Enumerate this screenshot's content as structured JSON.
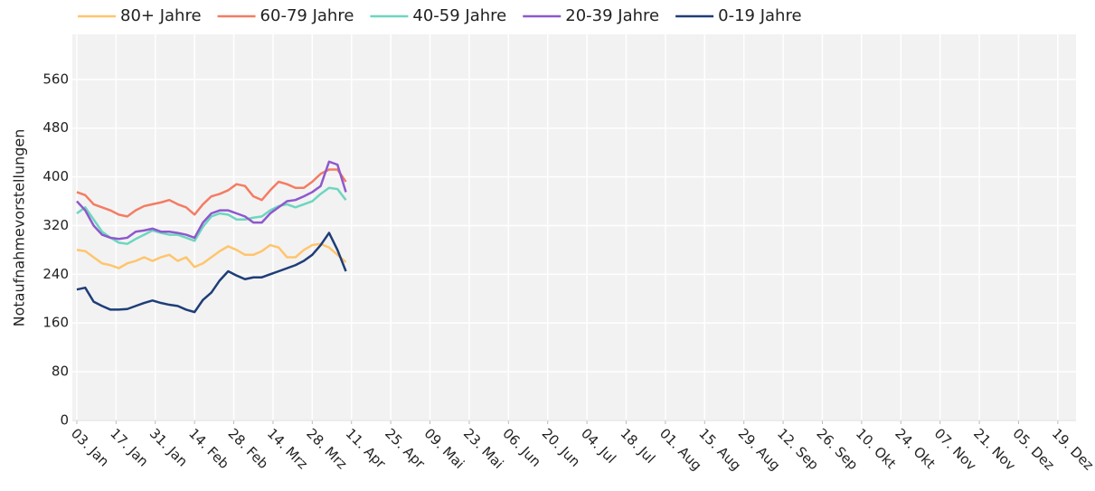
{
  "chart_data": {
    "type": "line",
    "y_label": "Notaufnahmevorstellungen",
    "grid": true,
    "legend": "top",
    "xlim": [
      -1.6,
      356.5
    ],
    "ylim": [
      0,
      634
    ],
    "yticks": [
      0,
      80,
      160,
      240,
      320,
      400,
      480,
      560
    ],
    "xticks": [
      {
        "value": 0,
        "label": "03. Jan"
      },
      {
        "value": 14,
        "label": "17. Jan"
      },
      {
        "value": 28,
        "label": "31. Jan"
      },
      {
        "value": 42,
        "label": "14. Feb"
      },
      {
        "value": 56,
        "label": "28. Feb"
      },
      {
        "value": 70,
        "label": "14. Mrz"
      },
      {
        "value": 84,
        "label": "28. Mrz"
      },
      {
        "value": 98,
        "label": "11. Apr"
      },
      {
        "value": 112,
        "label": "25. Apr"
      },
      {
        "value": 126,
        "label": "09. Mai"
      },
      {
        "value": 140,
        "label": "23. Mai"
      },
      {
        "value": 154,
        "label": "06. Jun"
      },
      {
        "value": 168,
        "label": "20. Jun"
      },
      {
        "value": 182,
        "label": "04. Jul"
      },
      {
        "value": 196,
        "label": "18. Jul"
      },
      {
        "value": 210,
        "label": "01. Aug"
      },
      {
        "value": 224,
        "label": "15. Aug"
      },
      {
        "value": 238,
        "label": "29. Aug"
      },
      {
        "value": 252,
        "label": "12. Sep"
      },
      {
        "value": 266,
        "label": "26. Sep"
      },
      {
        "value": 280,
        "label": "10. Okt"
      },
      {
        "value": 294,
        "label": "24. Okt"
      },
      {
        "value": 308,
        "label": "07. Nov"
      },
      {
        "value": 322,
        "label": "21. Nov"
      },
      {
        "value": 336,
        "label": "05. Dez"
      },
      {
        "value": 350,
        "label": "19. Dez"
      }
    ],
    "x": [
      0,
      3,
      6,
      9,
      12,
      15,
      18,
      21,
      24,
      27,
      30,
      33,
      36,
      39,
      42,
      45,
      48,
      51,
      54,
      57,
      60,
      63,
      66,
      69,
      72,
      75,
      78,
      81,
      84,
      87,
      90,
      93,
      96
    ],
    "series": [
      {
        "name": "80+ Jahre",
        "color": "#ffc56e",
        "values": [
          280,
          278,
          268,
          258,
          255,
          250,
          258,
          262,
          268,
          262,
          268,
          272,
          262,
          268,
          252,
          258,
          268,
          278,
          286,
          280,
          272,
          272,
          278,
          288,
          284,
          268,
          268,
          280,
          288,
          290,
          284,
          272,
          260
        ]
      },
      {
        "name": "60-79 Jahre",
        "color": "#f47c64",
        "values": [
          375,
          370,
          355,
          350,
          345,
          338,
          335,
          345,
          352,
          355,
          358,
          362,
          355,
          350,
          338,
          355,
          368,
          372,
          378,
          388,
          385,
          368,
          362,
          378,
          392,
          388,
          382,
          382,
          392,
          405,
          412,
          412,
          392
        ]
      },
      {
        "name": "40-59 Jahre",
        "color": "#6dd6bf",
        "values": [
          340,
          350,
          330,
          310,
          300,
          292,
          290,
          298,
          305,
          312,
          308,
          305,
          305,
          300,
          295,
          318,
          335,
          340,
          338,
          330,
          330,
          333,
          335,
          345,
          352,
          355,
          350,
          355,
          360,
          372,
          382,
          380,
          362
        ]
      },
      {
        "name": "20-39 Jahre",
        "color": "#8e58cc",
        "values": [
          360,
          345,
          320,
          305,
          300,
          298,
          300,
          310,
          312,
          315,
          310,
          310,
          308,
          305,
          300,
          325,
          340,
          345,
          345,
          340,
          335,
          325,
          325,
          340,
          350,
          360,
          362,
          368,
          375,
          385,
          425,
          420,
          375
        ]
      },
      {
        "name": "0-19 Jahre",
        "color": "#1f3d78",
        "values": [
          215,
          218,
          195,
          188,
          182,
          182,
          183,
          188,
          193,
          197,
          193,
          190,
          188,
          182,
          178,
          198,
          210,
          230,
          245,
          238,
          232,
          235,
          235,
          240,
          245,
          250,
          255,
          262,
          272,
          288,
          308,
          280,
          245
        ]
      }
    ]
  }
}
